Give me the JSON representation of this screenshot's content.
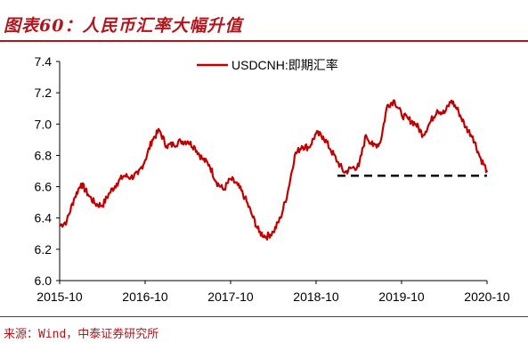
{
  "header": {
    "title": "图表60：人民币汇率大幅升值"
  },
  "footer": {
    "source": "来源：Wind，中泰证券研究所"
  },
  "colors": {
    "accent": "#b0161b",
    "line": "#c00000",
    "reference": "#000000"
  },
  "chart_data": {
    "type": "line",
    "title": "",
    "xlabel": "",
    "ylabel": "",
    "ylim": [
      6.0,
      7.4
    ],
    "yticks": [
      "6.0",
      "6.2",
      "6.4",
      "6.6",
      "6.8",
      "7.0",
      "7.2",
      "7.4"
    ],
    "xticks": [
      "2015-10",
      "2016-10",
      "2017-10",
      "2018-10",
      "2019-10",
      "2020-10"
    ],
    "legend": "top-center",
    "grid": false,
    "series": [
      {
        "name": "USDCNH:即期汇率",
        "style": "solid",
        "points": [
          [
            "2015-10",
            6.35
          ],
          [
            "2015-11",
            6.38
          ],
          [
            "2015-12",
            6.52
          ],
          [
            "2016-01",
            6.62
          ],
          [
            "2016-02",
            6.55
          ],
          [
            "2016-03",
            6.49
          ],
          [
            "2016-04",
            6.48
          ],
          [
            "2016-05",
            6.56
          ],
          [
            "2016-06",
            6.62
          ],
          [
            "2016-07",
            6.67
          ],
          [
            "2016-08",
            6.66
          ],
          [
            "2016-09",
            6.68
          ],
          [
            "2016-10",
            6.77
          ],
          [
            "2016-11",
            6.9
          ],
          [
            "2016-12",
            6.96
          ],
          [
            "2017-01",
            6.86
          ],
          [
            "2017-02",
            6.87
          ],
          [
            "2017-03",
            6.89
          ],
          [
            "2017-04",
            6.89
          ],
          [
            "2017-05",
            6.85
          ],
          [
            "2017-06",
            6.78
          ],
          [
            "2017-07",
            6.74
          ],
          [
            "2017-08",
            6.63
          ],
          [
            "2017-09",
            6.58
          ],
          [
            "2017-10",
            6.65
          ],
          [
            "2017-11",
            6.61
          ],
          [
            "2017-12",
            6.53
          ],
          [
            "2018-01",
            6.42
          ],
          [
            "2018-02",
            6.31
          ],
          [
            "2018-03",
            6.28
          ],
          [
            "2018-04",
            6.31
          ],
          [
            "2018-05",
            6.4
          ],
          [
            "2018-06",
            6.56
          ],
          [
            "2018-07",
            6.8
          ],
          [
            "2018-08",
            6.86
          ],
          [
            "2018-09",
            6.85
          ],
          [
            "2018-10",
            6.94
          ],
          [
            "2018-11",
            6.92
          ],
          [
            "2018-12",
            6.84
          ],
          [
            "2019-01",
            6.76
          ],
          [
            "2019-02",
            6.69
          ],
          [
            "2019-03",
            6.72
          ],
          [
            "2019-04",
            6.73
          ],
          [
            "2019-05",
            6.93
          ],
          [
            "2019-06",
            6.86
          ],
          [
            "2019-07",
            6.88
          ],
          [
            "2019-08",
            7.12
          ],
          [
            "2019-09",
            7.15
          ],
          [
            "2019-10",
            7.06
          ],
          [
            "2019-11",
            7.03
          ],
          [
            "2019-12",
            7.0
          ],
          [
            "2020-01",
            6.93
          ],
          [
            "2020-02",
            7.01
          ],
          [
            "2020-03",
            7.09
          ],
          [
            "2020-04",
            7.07
          ],
          [
            "2020-05",
            7.15
          ],
          [
            "2020-06",
            7.08
          ],
          [
            "2020-07",
            6.98
          ],
          [
            "2020-08",
            6.92
          ],
          [
            "2020-09",
            6.79
          ],
          [
            "2020-10",
            6.7
          ]
        ]
      },
      {
        "name": "",
        "style": "dashed",
        "points": [
          [
            "2019-01",
            6.67
          ],
          [
            "2020-10",
            6.67
          ]
        ]
      }
    ]
  }
}
